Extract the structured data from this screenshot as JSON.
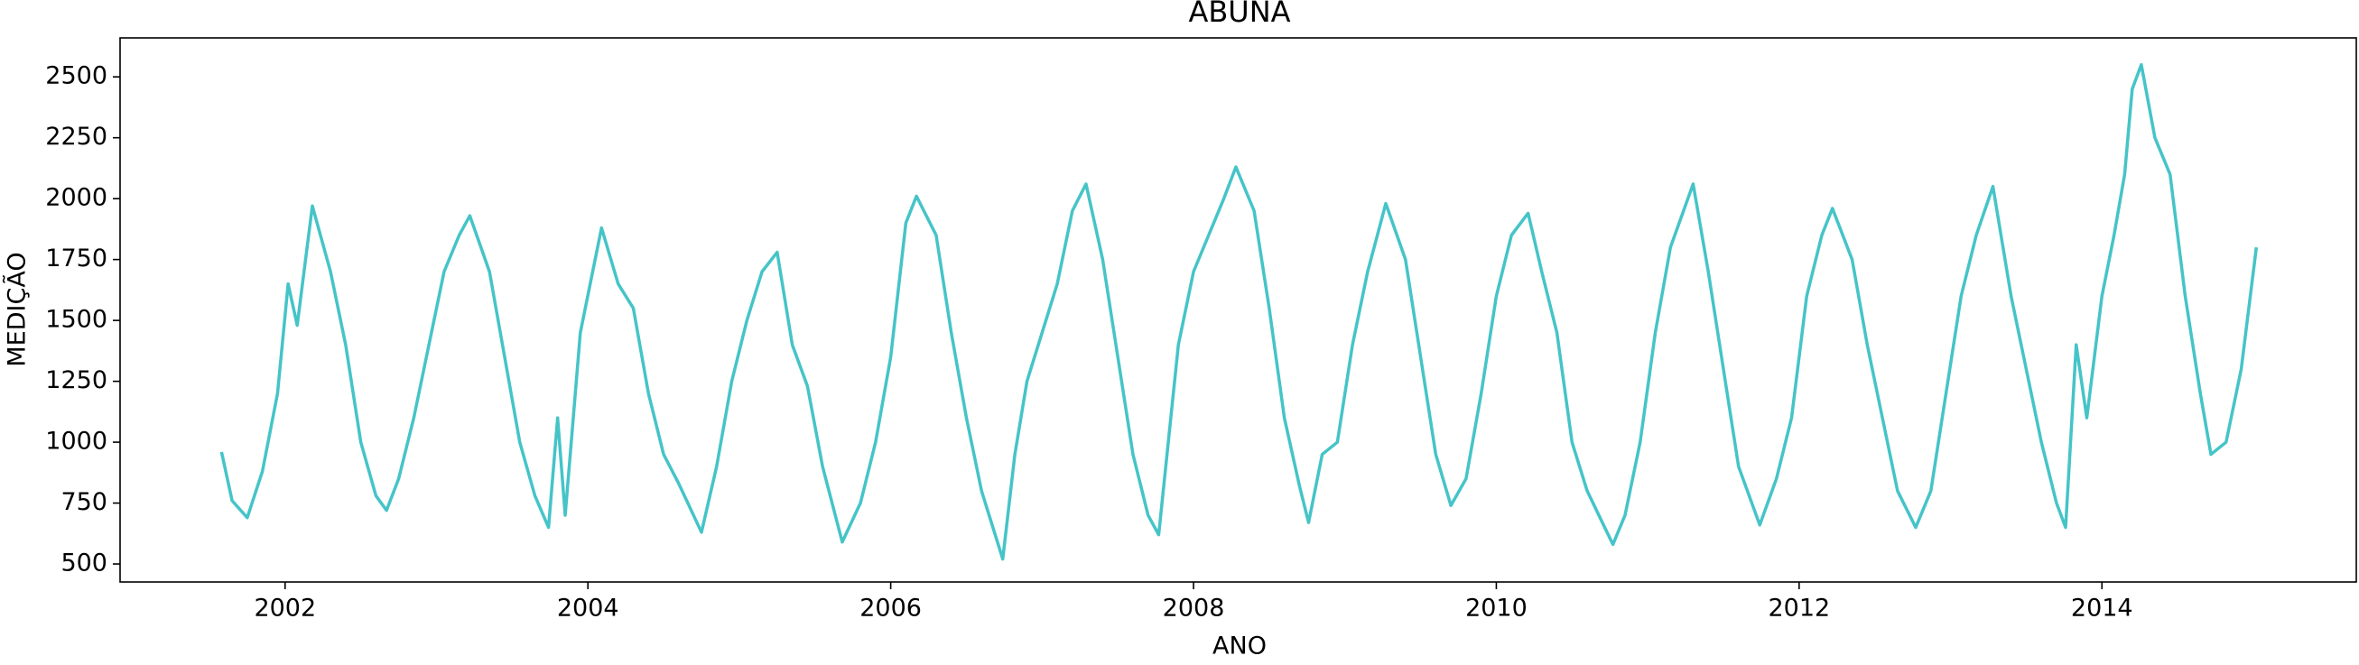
{
  "chart_data": {
    "type": "line",
    "title": "ABUNA",
    "xlabel": "ANO",
    "ylabel": "MEDIÇÃO",
    "color": "#45c4c8",
    "x": [
      2001.58,
      2001.65,
      2001.75,
      2001.85,
      2001.95,
      2002.02,
      2002.08,
      2002.18,
      2002.3,
      2002.4,
      2002.5,
      2002.6,
      2002.67,
      2002.75,
      2002.85,
      2002.95,
      2003.05,
      2003.15,
      2003.22,
      2003.35,
      2003.45,
      2003.55,
      2003.65,
      2003.74,
      2003.8,
      2003.85,
      2003.95,
      2004.09,
      2004.2,
      2004.3,
      2004.4,
      2004.5,
      2004.6,
      2004.75,
      2004.85,
      2004.95,
      2005.05,
      2005.15,
      2005.25,
      2005.35,
      2005.45,
      2005.55,
      2005.68,
      2005.8,
      2005.9,
      2006.0,
      2006.1,
      2006.17,
      2006.3,
      2006.4,
      2006.5,
      2006.6,
      2006.74,
      2006.82,
      2006.9,
      2007.0,
      2007.1,
      2007.2,
      2007.29,
      2007.4,
      2007.5,
      2007.6,
      2007.7,
      2007.77,
      2007.9,
      2008.0,
      2008.1,
      2008.2,
      2008.28,
      2008.4,
      2008.5,
      2008.6,
      2008.7,
      2008.76,
      2008.85,
      2008.95,
      2009.05,
      2009.15,
      2009.27,
      2009.4,
      2009.5,
      2009.6,
      2009.7,
      2009.8,
      2009.9,
      2010.0,
      2010.1,
      2010.21,
      2010.3,
      2010.4,
      2010.5,
      2010.6,
      2010.77,
      2010.85,
      2010.95,
      2011.05,
      2011.15,
      2011.3,
      2011.4,
      2011.5,
      2011.6,
      2011.74,
      2011.85,
      2011.95,
      2012.05,
      2012.15,
      2012.22,
      2012.35,
      2012.45,
      2012.55,
      2012.65,
      2012.77,
      2012.87,
      2012.97,
      2013.07,
      2013.17,
      2013.28,
      2013.4,
      2013.5,
      2013.6,
      2013.7,
      2013.76,
      2013.83,
      2013.9,
      2014.0,
      2014.08,
      2014.15,
      2014.2,
      2014.26,
      2014.35,
      2014.45,
      2014.55,
      2014.65,
      2014.72,
      2014.82,
      2014.92,
      2015.02
    ],
    "values": [
      960,
      760,
      690,
      880,
      1200,
      1650,
      1480,
      1970,
      1700,
      1400,
      1000,
      780,
      720,
      850,
      1100,
      1400,
      1700,
      1850,
      1930,
      1700,
      1350,
      1000,
      780,
      650,
      1100,
      700,
      1450,
      1880,
      1650,
      1550,
      1200,
      950,
      830,
      630,
      900,
      1250,
      1500,
      1700,
      1780,
      1400,
      1230,
      900,
      590,
      750,
      1000,
      1350,
      1900,
      2010,
      1850,
      1450,
      1100,
      800,
      520,
      950,
      1250,
      1450,
      1650,
      1950,
      2060,
      1750,
      1350,
      950,
      700,
      620,
      1400,
      1700,
      1850,
      2000,
      2130,
      1950,
      1550,
      1100,
      820,
      670,
      950,
      1000,
      1400,
      1700,
      1980,
      1750,
      1350,
      950,
      740,
      850,
      1200,
      1600,
      1850,
      1940,
      1700,
      1450,
      1000,
      800,
      580,
      700,
      1000,
      1450,
      1800,
      2060,
      1700,
      1300,
      900,
      660,
      850,
      1100,
      1600,
      1850,
      1960,
      1750,
      1400,
      1100,
      800,
      650,
      800,
      1200,
      1600,
      1850,
      2050,
      1600,
      1300,
      1000,
      750,
      650,
      1400,
      1100,
      1600,
      1850,
      2100,
      2450,
      2550,
      2250,
      2100,
      1600,
      1200,
      950,
      1000,
      1300,
      1800
    ],
    "xlim": [
      2000.91,
      2015.68
    ],
    "ylim": [
      426,
      2660
    ],
    "xticks": [
      2002,
      2004,
      2006,
      2008,
      2010,
      2012,
      2014
    ],
    "yticks": [
      500,
      750,
      1000,
      1250,
      1500,
      1750,
      2000,
      2250,
      2500
    ]
  }
}
